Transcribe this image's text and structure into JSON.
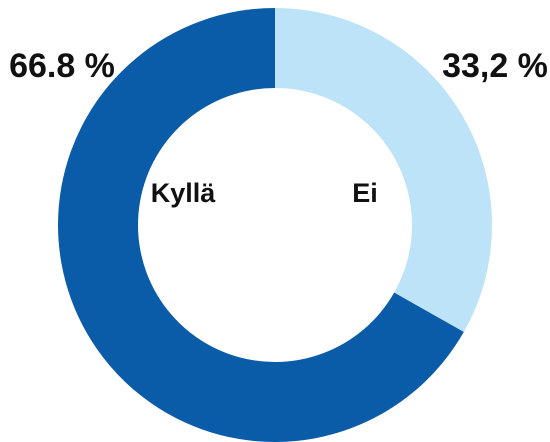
{
  "chart_data": {
    "type": "donut",
    "categories": [
      "Kyllä",
      "Ei"
    ],
    "values": [
      66.8,
      33.2
    ],
    "value_labels": [
      "66.8 %",
      "33,2 %"
    ],
    "colors": [
      "#0a5ca8",
      "#bde3f8"
    ]
  }
}
